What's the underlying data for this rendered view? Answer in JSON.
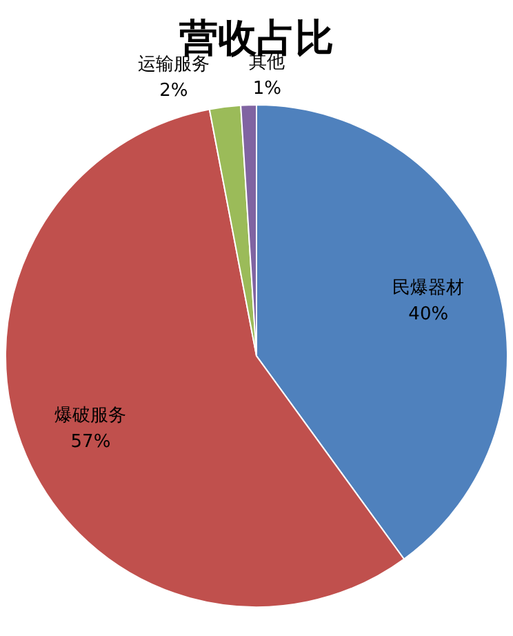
{
  "chart_data": {
    "type": "pie",
    "title": "营收占比",
    "categories": [
      "民爆器材",
      "爆破服务",
      "运输服务",
      "其他"
    ],
    "values": [
      40,
      57,
      2,
      1
    ],
    "colors": [
      "#4f81bd",
      "#c0504d",
      "#9bbb59",
      "#8064a2"
    ],
    "value_labels": [
      "40%",
      "57%",
      "2%",
      "1%"
    ],
    "legend": false
  }
}
